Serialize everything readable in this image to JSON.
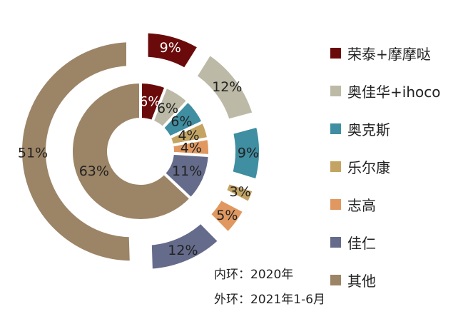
{
  "chart_data": {
    "type": "donut",
    "categories": [
      "荣泰+摩摩哒",
      "奥佳华+ihoco",
      "奥克斯",
      "乐尔康",
      "志高",
      "佳仁",
      "其他"
    ],
    "colors": [
      "#6b0a0a",
      "#bcbaa6",
      "#3f8ea1",
      "#c4a463",
      "#e09860",
      "#656b8a",
      "#9c8466"
    ],
    "series": [
      {
        "name": "内环：2020年",
        "values": [
          6,
          6,
          6,
          4,
          4,
          11,
          63
        ],
        "labels": [
          "6%",
          "6%",
          "6%",
          "4%",
          "4%",
          "11%",
          "63%"
        ]
      },
      {
        "name": "外环：2021年1-6月",
        "values": [
          9,
          12,
          9,
          3,
          5,
          12,
          51
        ],
        "labels": [
          "9%",
          "12%",
          "9%",
          "3%",
          "5%",
          "12%",
          "51%"
        ]
      }
    ]
  },
  "legend": [
    "荣泰+摩摩哒",
    "奥佳华+ihoco",
    "奥克斯",
    "乐尔康",
    "志高",
    "佳仁",
    "其他"
  ],
  "notes": {
    "inner": "内环：2020年",
    "outer": "外环：2021年1-6月"
  }
}
